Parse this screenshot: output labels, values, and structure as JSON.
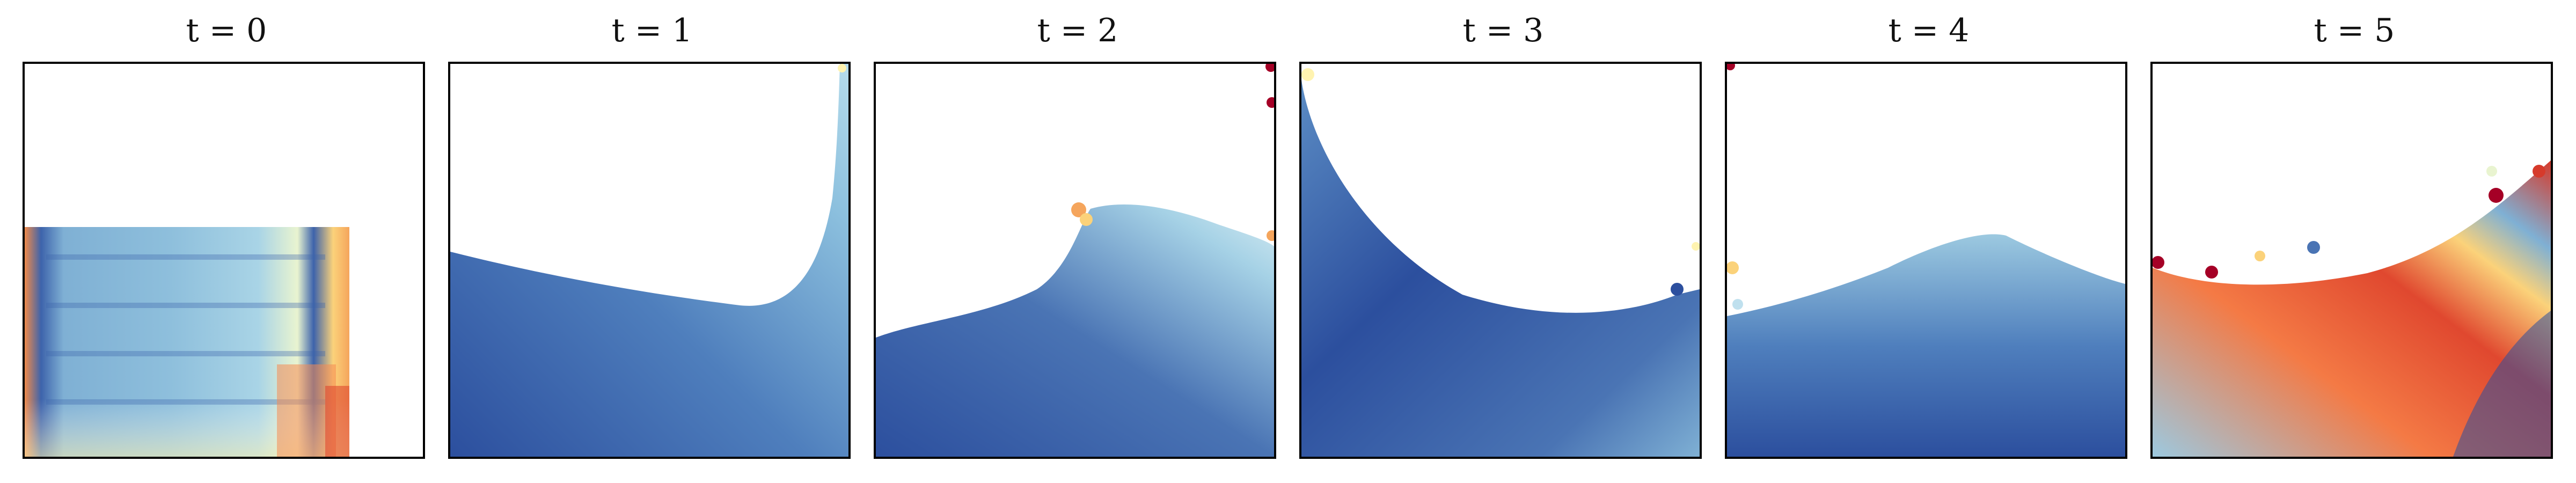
{
  "figure": {
    "panels": [
      {
        "title": "t = 0"
      },
      {
        "title": "t = 1"
      },
      {
        "title": "t = 2"
      },
      {
        "title": "t = 3"
      },
      {
        "title": "t = 4"
      },
      {
        "title": "t = 5"
      }
    ]
  },
  "colors": {
    "deep_blue": "#2c4f9e",
    "mid_blue": "#4a74b4",
    "light_blue": "#9cc9e0",
    "pale": "#fff3b0",
    "orange": "#f79a55",
    "red": "#d63a2b",
    "dark_red": "#a50026"
  }
}
